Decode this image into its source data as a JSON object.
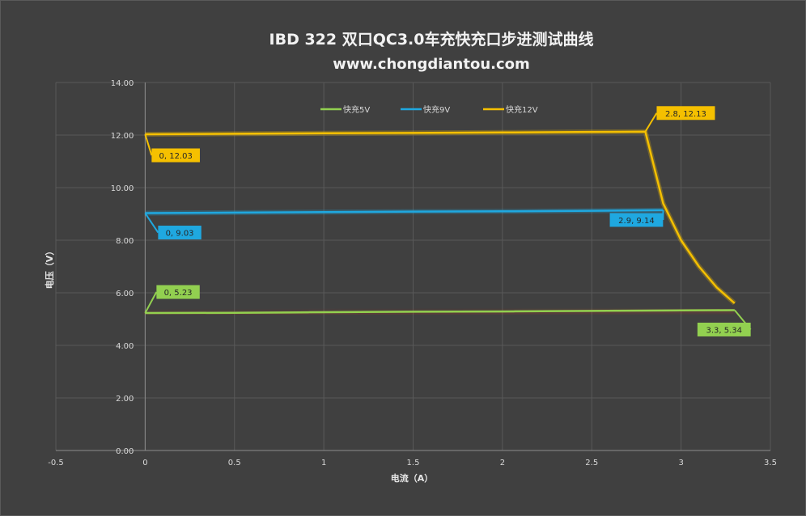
{
  "chart_data": {
    "type": "line",
    "title": "IBD 322 双口QC3.0车充快充口步进测试曲线",
    "subtitle": "www.chongdiantou.com",
    "xlabel": "电流（A）",
    "ylabel": "电压（V）",
    "xlim": [
      -0.5,
      3.5
    ],
    "ylim": [
      0,
      14
    ],
    "x_ticks": [
      "-0.5",
      "0",
      "0.5",
      "1",
      "1.5",
      "2",
      "2.5",
      "3",
      "3.5"
    ],
    "y_ticks": [
      "0.00",
      "2.00",
      "4.00",
      "6.00",
      "8.00",
      "10.00",
      "12.00",
      "14.00"
    ],
    "grid": true,
    "legend_position": "top",
    "series": [
      {
        "name": "快充5V",
        "color": "#92d050",
        "x": [
          0,
          0.5,
          1,
          1.5,
          2,
          2.5,
          3,
          3.3
        ],
        "y": [
          5.23,
          5.24,
          5.26,
          5.28,
          5.29,
          5.31,
          5.33,
          5.34
        ]
      },
      {
        "name": "快充9V",
        "color": "#1fa8e0",
        "x": [
          0,
          0.5,
          1,
          1.5,
          2,
          2.5,
          2.9
        ],
        "y": [
          9.03,
          9.05,
          9.07,
          9.09,
          9.1,
          9.12,
          9.14
        ]
      },
      {
        "name": "快充12V",
        "color": "#f5c000",
        "x": [
          0,
          0.5,
          1,
          1.5,
          2,
          2.5,
          2.8,
          2.9,
          3.0,
          3.1,
          3.2,
          3.3
        ],
        "y": [
          12.03,
          12.05,
          12.07,
          12.08,
          12.1,
          12.12,
          12.13,
          9.4,
          8.0,
          7.0,
          6.2,
          5.6
        ]
      }
    ],
    "annotations": [
      {
        "text": "0, 5.23",
        "series": 0,
        "x": 0,
        "y": 5.23,
        "color": "#92d050"
      },
      {
        "text": "3.3, 5.34",
        "series": 0,
        "x": 3.3,
        "y": 5.34,
        "color": "#92d050"
      },
      {
        "text": "0, 9.03",
        "series": 1,
        "x": 0,
        "y": 9.03,
        "color": "#1fa8e0"
      },
      {
        "text": "2.9, 9.14",
        "series": 1,
        "x": 2.9,
        "y": 9.14,
        "color": "#1fa8e0"
      },
      {
        "text": "0, 12.03",
        "series": 2,
        "x": 0,
        "y": 12.03,
        "color": "#f5c000"
      },
      {
        "text": "2.8, 12.13",
        "series": 2,
        "x": 2.8,
        "y": 12.13,
        "color": "#f5c000"
      }
    ]
  }
}
